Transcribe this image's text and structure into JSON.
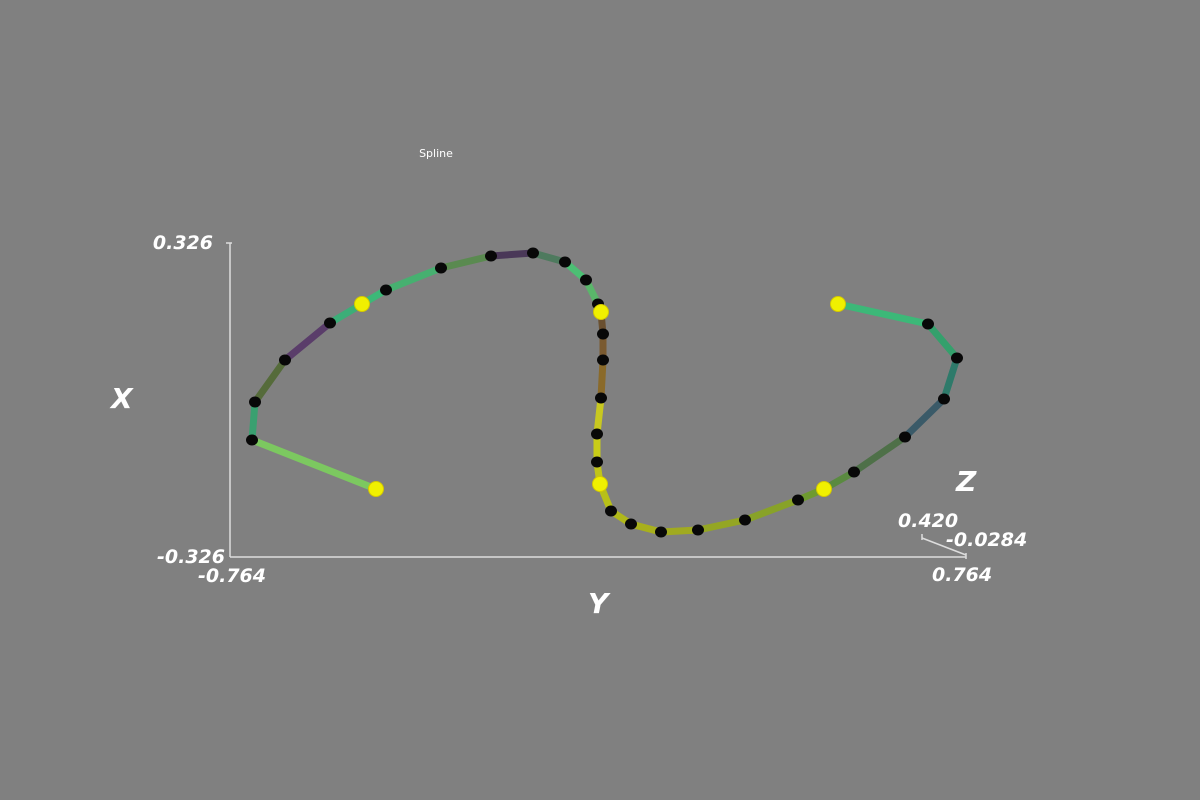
{
  "scene": {
    "title": "Spline",
    "axes": {
      "x": {
        "label": "X",
        "min": "-0.326",
        "max": "0.326"
      },
      "y": {
        "label": "Y",
        "min": "-0.764",
        "max": "0.764"
      },
      "z": {
        "label": "Z",
        "min": "0.420",
        "max": "-0.0284"
      }
    }
  }
}
